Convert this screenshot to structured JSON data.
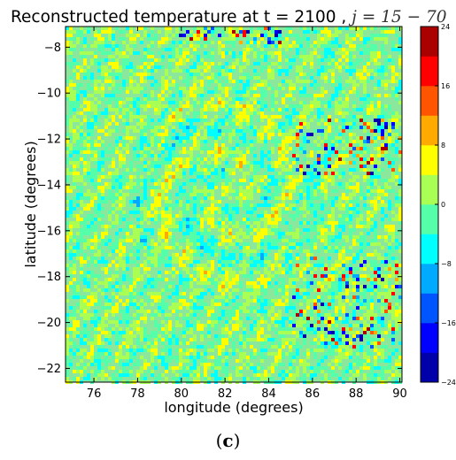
{
  "chart_data": {
    "type": "heatmap",
    "title_main": "Reconstructed temperature at t = 2100 , ",
    "title_math": "j = 15 − 70",
    "xlabel": "longitude (degrees)",
    "ylabel": "latitude (degrees)",
    "xlim": [
      74.7,
      90.1
    ],
    "ylim": [
      -22.6,
      -7.1
    ],
    "x_ticks": [
      76,
      78,
      80,
      82,
      84,
      86,
      88,
      90
    ],
    "x_tick_labels": [
      "76",
      "78",
      "80",
      "82",
      "84",
      "86",
      "88",
      "90"
    ],
    "y_ticks": [
      -8,
      -10,
      -12,
      -14,
      -16,
      -18,
      -20,
      -22
    ],
    "y_tick_labels": [
      "−8",
      "−10",
      "−12",
      "−14",
      "−16",
      "−18",
      "−20",
      "−22"
    ],
    "colorbar": {
      "min": -24,
      "max": 24,
      "ticks": [
        24,
        16,
        8,
        0,
        -8,
        -16,
        -24
      ],
      "tick_labels": [
        "24",
        "16",
        "8",
        "0",
        "−8",
        "−16",
        "−24"
      ],
      "colormap": "jet",
      "levels": 12
    },
    "features": [
      {
        "kind": "cyclone-spiral",
        "center_lon": 82.0,
        "center_lat": -14.3,
        "radius_deg": 3.0
      },
      {
        "kind": "rainband-streaks",
        "lon_range": [
          85,
          90
        ],
        "lat_range": [
          -11,
          -13
        ]
      },
      {
        "kind": "rainband-streaks",
        "lon_range": [
          84,
          90
        ],
        "lat_range": [
          -17,
          -21
        ]
      }
    ],
    "grid": false,
    "legend": "colorbar-right"
  },
  "caption": {
    "open": "(",
    "letter": "c",
    "close": ")"
  }
}
